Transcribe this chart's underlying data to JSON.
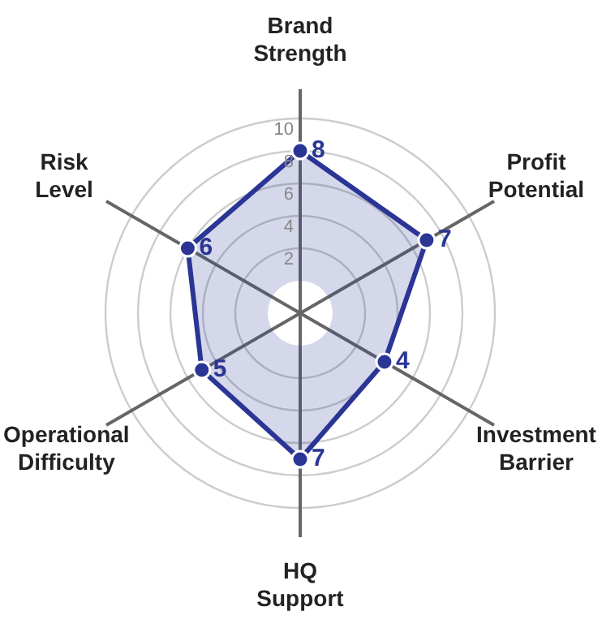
{
  "chart_data": {
    "type": "radar",
    "categories": [
      "Brand Strength",
      "Profit Potential",
      "Investment Barrier",
      "HQ Support",
      "Operational Difficulty",
      "Risk Level"
    ],
    "series": [
      {
        "color": "#2b3595",
        "values": [
          8,
          7,
          4,
          7,
          5,
          6
        ]
      }
    ],
    "ylim": [
      -2,
      10
    ],
    "yticks": [
      2,
      4,
      6,
      8,
      10
    ],
    "data_labels": true,
    "grid": true,
    "marker": "circle",
    "legend": false
  }
}
